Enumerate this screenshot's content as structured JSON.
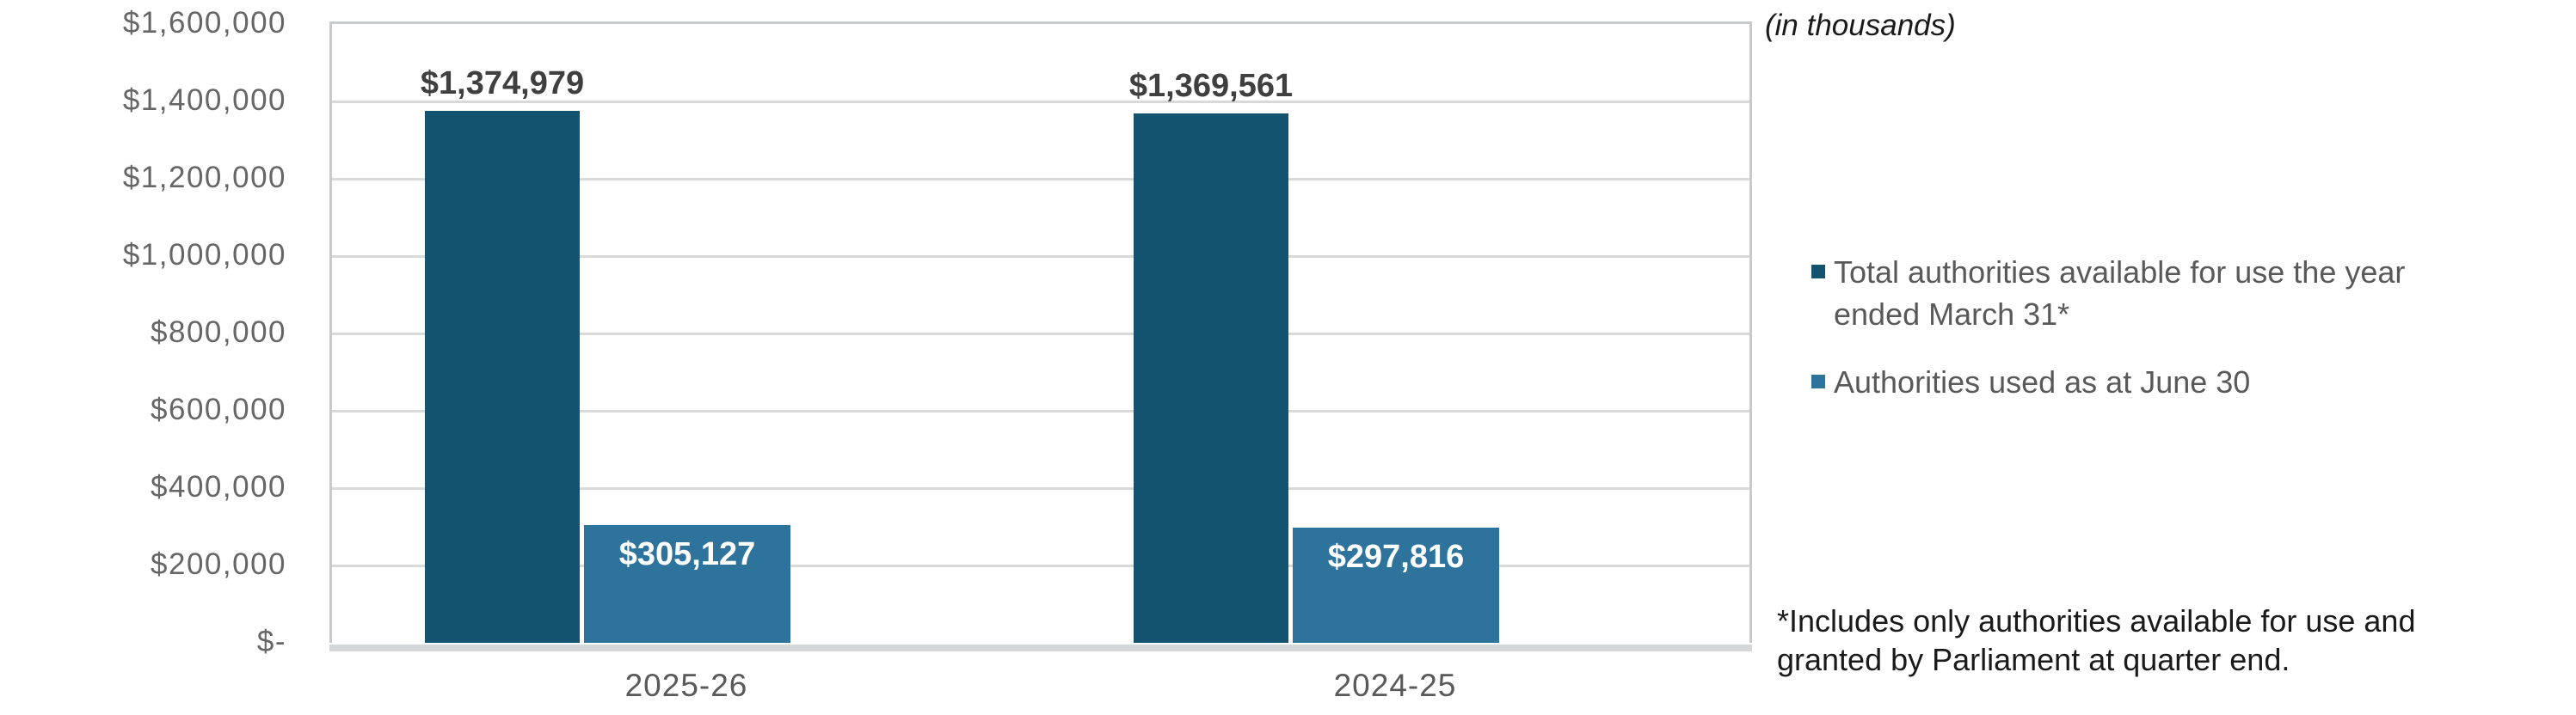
{
  "chart": {
    "units_label": "(in thousands)",
    "footnote_lines": [
      "*Includes only authorities available for use and",
      "granted by Parliament at quarter end."
    ]
  },
  "colors": {
    "dark_series": "#14536F",
    "light_series": "#2E739C",
    "value_label_dark": "#3F3F3F",
    "value_label_light": "#FFFFFF",
    "axis_text": "#666666",
    "category_text": "#595959",
    "legend_text": "#595959",
    "note_text": "#1A1A1A",
    "gridline": "#D9D9D9",
    "plot_border": "#C7CBCE",
    "axis_band": "#D5D8DA"
  },
  "legend": {
    "items": [
      {
        "series": "total-authorities",
        "color": "#14536F",
        "lines": [
          "Total authorities available for use the year",
          "ended March 31*"
        ]
      },
      {
        "series": "authorities-used",
        "color": "#2E739C",
        "lines": [
          "Authorities used as at June 30"
        ]
      }
    ]
  },
  "chart_data": {
    "type": "bar",
    "title": "",
    "units": "in thousands",
    "categories": [
      "2025-26",
      "2024-25"
    ],
    "series": [
      {
        "name": "Total authorities available for use the year ended March 31*",
        "values": [
          1374979,
          1369561
        ],
        "labels": [
          "$1,374,979",
          "$1,369,561"
        ],
        "color": "#14536F",
        "label_position": "above",
        "label_color": "#3F3F3F"
      },
      {
        "name": "Authorities used as at June 30",
        "values": [
          305127,
          297816
        ],
        "labels": [
          "$305,127",
          "$297,816"
        ],
        "color": "#2E739C",
        "label_position": "inside-top",
        "label_color": "#FFFFFF"
      }
    ],
    "ylim": [
      0,
      1600000
    ],
    "y_ticks": [
      {
        "value": 1600000,
        "label": "$1,600,000"
      },
      {
        "value": 1400000,
        "label": "$1,400,000"
      },
      {
        "value": 1200000,
        "label": "$1,200,000"
      },
      {
        "value": 1000000,
        "label": "$1,000,000"
      },
      {
        "value": 800000,
        "label": "$800,000"
      },
      {
        "value": 600000,
        "label": "$600,000"
      },
      {
        "value": 400000,
        "label": "$400,000"
      },
      {
        "value": 200000,
        "label": "$200,000"
      },
      {
        "value": 0,
        "label": "$-"
      }
    ],
    "grid": true,
    "legend_position": "right"
  }
}
